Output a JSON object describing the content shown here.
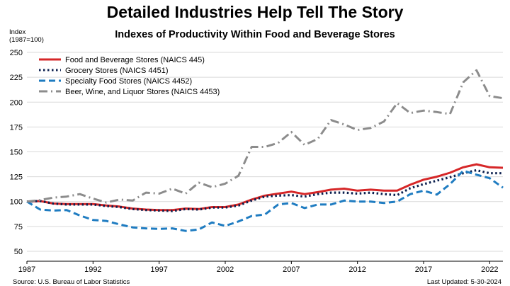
{
  "title": "Detailed Industries Help Tell The Story",
  "subtitle": "Indexes of Productivity Within Food and Beverage Stores",
  "y_unit": [
    "Index",
    "(1987=100)"
  ],
  "footer": {
    "source": "Source: U.S. Bureau of Labor Statistics",
    "updated": "Last Updated: 5-30-2024"
  },
  "chart_data": {
    "type": "line",
    "title": "Indexes of Productivity Within Food and Beverage Stores",
    "ylabel": "Index (1987=100)",
    "xlabel": "",
    "xlim": [
      1987,
      2023
    ],
    "ylim": [
      40,
      260
    ],
    "x_ticks": [
      1987,
      1992,
      1997,
      2002,
      2007,
      2012,
      2017,
      2022
    ],
    "y_ticks": [
      50,
      75,
      100,
      125,
      150,
      175,
      200,
      225,
      250
    ],
    "grid": "horizontal",
    "legend_position": "top-left",
    "x": [
      1987,
      1988,
      1989,
      1990,
      1991,
      1992,
      1993,
      1994,
      1995,
      1996,
      1997,
      1998,
      1999,
      2000,
      2001,
      2002,
      2003,
      2004,
      2005,
      2006,
      2007,
      2008,
      2009,
      2010,
      2011,
      2012,
      2013,
      2014,
      2015,
      2016,
      2017,
      2018,
      2019,
      2020,
      2021,
      2022,
      2023
    ],
    "series": [
      {
        "name": "Food and Beverage Stores (NAICS 445)",
        "color": "#d62728",
        "dash": "solid",
        "values": [
          100,
          100.5,
          98,
          97.5,
          97.5,
          97.5,
          96,
          95,
          93,
          92,
          91.5,
          91.5,
          93,
          92.5,
          94.5,
          94.5,
          97,
          102,
          106,
          108,
          110,
          107.5,
          109.5,
          112,
          113,
          111,
          112,
          111,
          111,
          117,
          122,
          125,
          129,
          134.5,
          137.5,
          134.5,
          134
        ]
      },
      {
        "name": "Grocery Stores (NAICS 4451)",
        "color": "#0b1f4e",
        "dash": "dotted",
        "values": [
          100,
          100.5,
          98,
          97,
          97,
          97,
          95.5,
          94.5,
          92.5,
          91.5,
          91,
          90.5,
          92.5,
          92,
          94,
          94,
          96,
          101,
          105,
          106,
          106.5,
          105,
          107.5,
          109,
          109,
          108,
          109,
          107.5,
          106.5,
          113.5,
          117.5,
          121,
          124.5,
          128.5,
          131.5,
          128.5,
          128.5
        ]
      },
      {
        "name": "Specialty Food Stores (NAICS 4452)",
        "color": "#1f7cc1",
        "dash": "dashed",
        "values": [
          100,
          92,
          91,
          91.5,
          86,
          81.5,
          80.5,
          77,
          74,
          73,
          72.5,
          73,
          70.5,
          72,
          79,
          75.5,
          80,
          85.5,
          87,
          97,
          98.5,
          93.5,
          97,
          97,
          101,
          100,
          100,
          98.5,
          100,
          107.5,
          111,
          107,
          117.5,
          131,
          127,
          123.5,
          114
        ]
      },
      {
        "name": "Beer, Wine, and Liquor Stores (NAICS 4453)",
        "color": "#8c8c8c",
        "dash": "dashdot",
        "values": [
          100,
          101.5,
          104,
          105,
          107.5,
          103,
          99,
          102,
          101,
          109,
          108,
          113,
          108,
          119,
          114.5,
          118,
          126,
          155,
          155,
          159,
          170,
          157,
          163,
          182,
          177.5,
          172,
          174,
          180.5,
          199,
          189,
          191.5,
          190,
          188,
          220,
          232,
          206,
          204
        ]
      }
    ]
  }
}
